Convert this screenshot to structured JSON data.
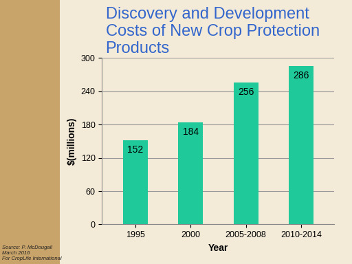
{
  "chart_data": {
    "type": "bar",
    "title": "Discovery and Development Costs of New Crop Protection Products",
    "x_label": "Year",
    "y_label": "$(millions)",
    "categories": [
      "1995",
      "2000",
      "2005-2008",
      "2010-2014"
    ],
    "values": [
      152,
      184,
      256,
      286
    ],
    "color": "#1fc99a",
    "ylim": [
      0,
      300
    ],
    "yticks": [
      0,
      60,
      120,
      180,
      240,
      300
    ],
    "grid": true,
    "data_labels": true,
    "source": "Source: P. McDougall\nMarch 2016\nFor CropLife International"
  }
}
